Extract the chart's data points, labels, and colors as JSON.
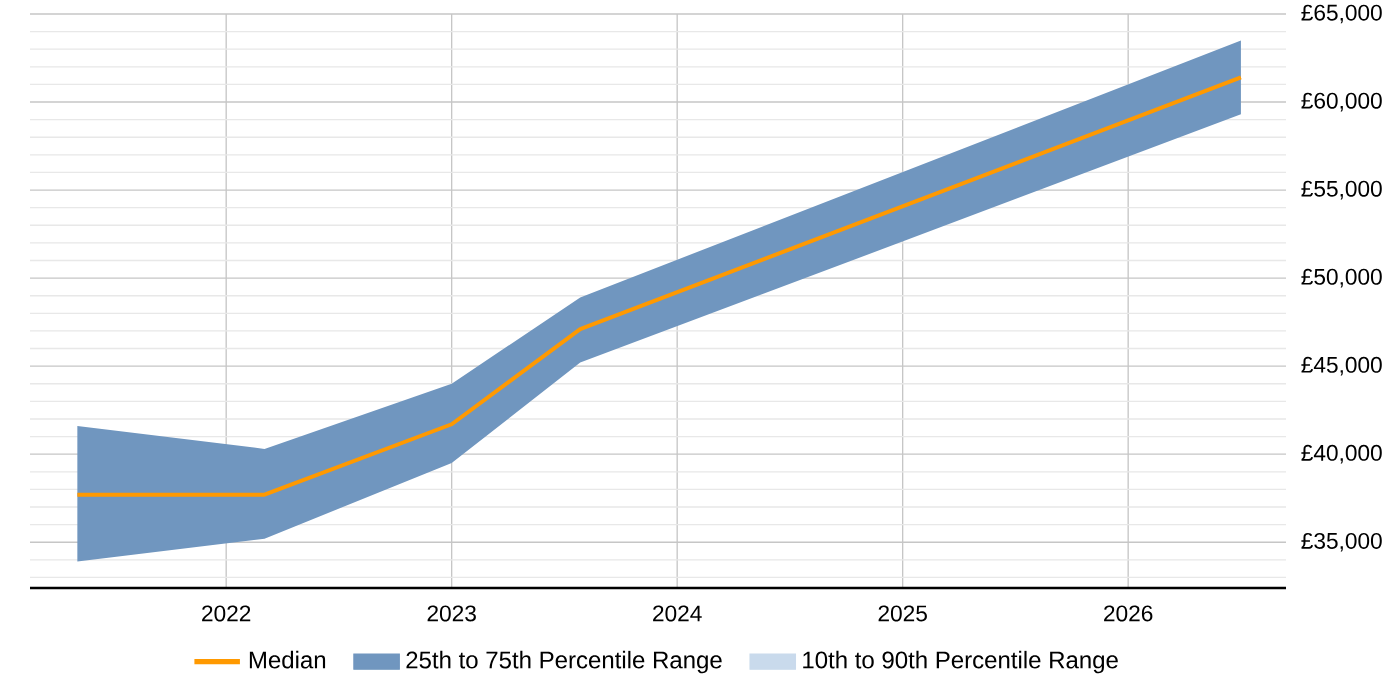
{
  "chart_data": {
    "type": "line",
    "x": [
      2021.34,
      2022.17,
      2023,
      2023.57,
      2026.5
    ],
    "series": [
      {
        "name": "Median",
        "color": "#ff9900",
        "values": [
          37700,
          37700,
          41700,
          47100,
          61400
        ]
      },
      {
        "name": "25th to 75th Percentile Range",
        "type": "area",
        "color": "#7096bf",
        "values": [
          null,
          null,
          null,
          null,
          null
        ],
        "lower": [
          33900,
          35200,
          39500,
          45200,
          59300
        ],
        "upper": [
          41600,
          40300,
          44000,
          48900,
          63500
        ]
      },
      {
        "name": "10th to 90th Percentile Range",
        "type": "area",
        "color": "#c9daec",
        "values": [
          null,
          null,
          null,
          null,
          null
        ]
      }
    ],
    "xlim": [
      2021.13,
      2026.7
    ],
    "ylim": [
      32400,
      65000
    ],
    "xticks": [
      2022,
      2023,
      2024,
      2025,
      2026
    ],
    "yticks": [
      {
        "value": 33000,
        "label": null
      },
      {
        "value": 34000,
        "label": null
      },
      {
        "value": 35000,
        "label": "£35,000"
      },
      {
        "value": 36000,
        "label": null
      },
      {
        "value": 37000,
        "label": null
      },
      {
        "value": 38000,
        "label": null
      },
      {
        "value": 39000,
        "label": null
      },
      {
        "value": 40000,
        "label": "£40,000"
      },
      {
        "value": 41000,
        "label": null
      },
      {
        "value": 42000,
        "label": null
      },
      {
        "value": 43000,
        "label": null
      },
      {
        "value": 44000,
        "label": null
      },
      {
        "value": 45000,
        "label": "£45,000"
      },
      {
        "value": 46000,
        "label": null
      },
      {
        "value": 47000,
        "label": null
      },
      {
        "value": 48000,
        "label": null
      },
      {
        "value": 49000,
        "label": null
      },
      {
        "value": 50000,
        "label": "£50,000"
      },
      {
        "value": 51000,
        "label": null
      },
      {
        "value": 52000,
        "label": null
      },
      {
        "value": 53000,
        "label": null
      },
      {
        "value": 54000,
        "label": null
      },
      {
        "value": 55000,
        "label": "£55,000"
      },
      {
        "value": 56000,
        "label": null
      },
      {
        "value": 57000,
        "label": null
      },
      {
        "value": 58000,
        "label": null
      },
      {
        "value": 59000,
        "label": null
      },
      {
        "value": 60000,
        "label": "£60,000"
      },
      {
        "value": 61000,
        "label": null
      },
      {
        "value": 62000,
        "label": null
      },
      {
        "value": 63000,
        "label": null
      },
      {
        "value": 64000,
        "label": null
      },
      {
        "value": 65000,
        "label": "£65,000"
      }
    ],
    "grid": true,
    "legend": "bottom"
  }
}
